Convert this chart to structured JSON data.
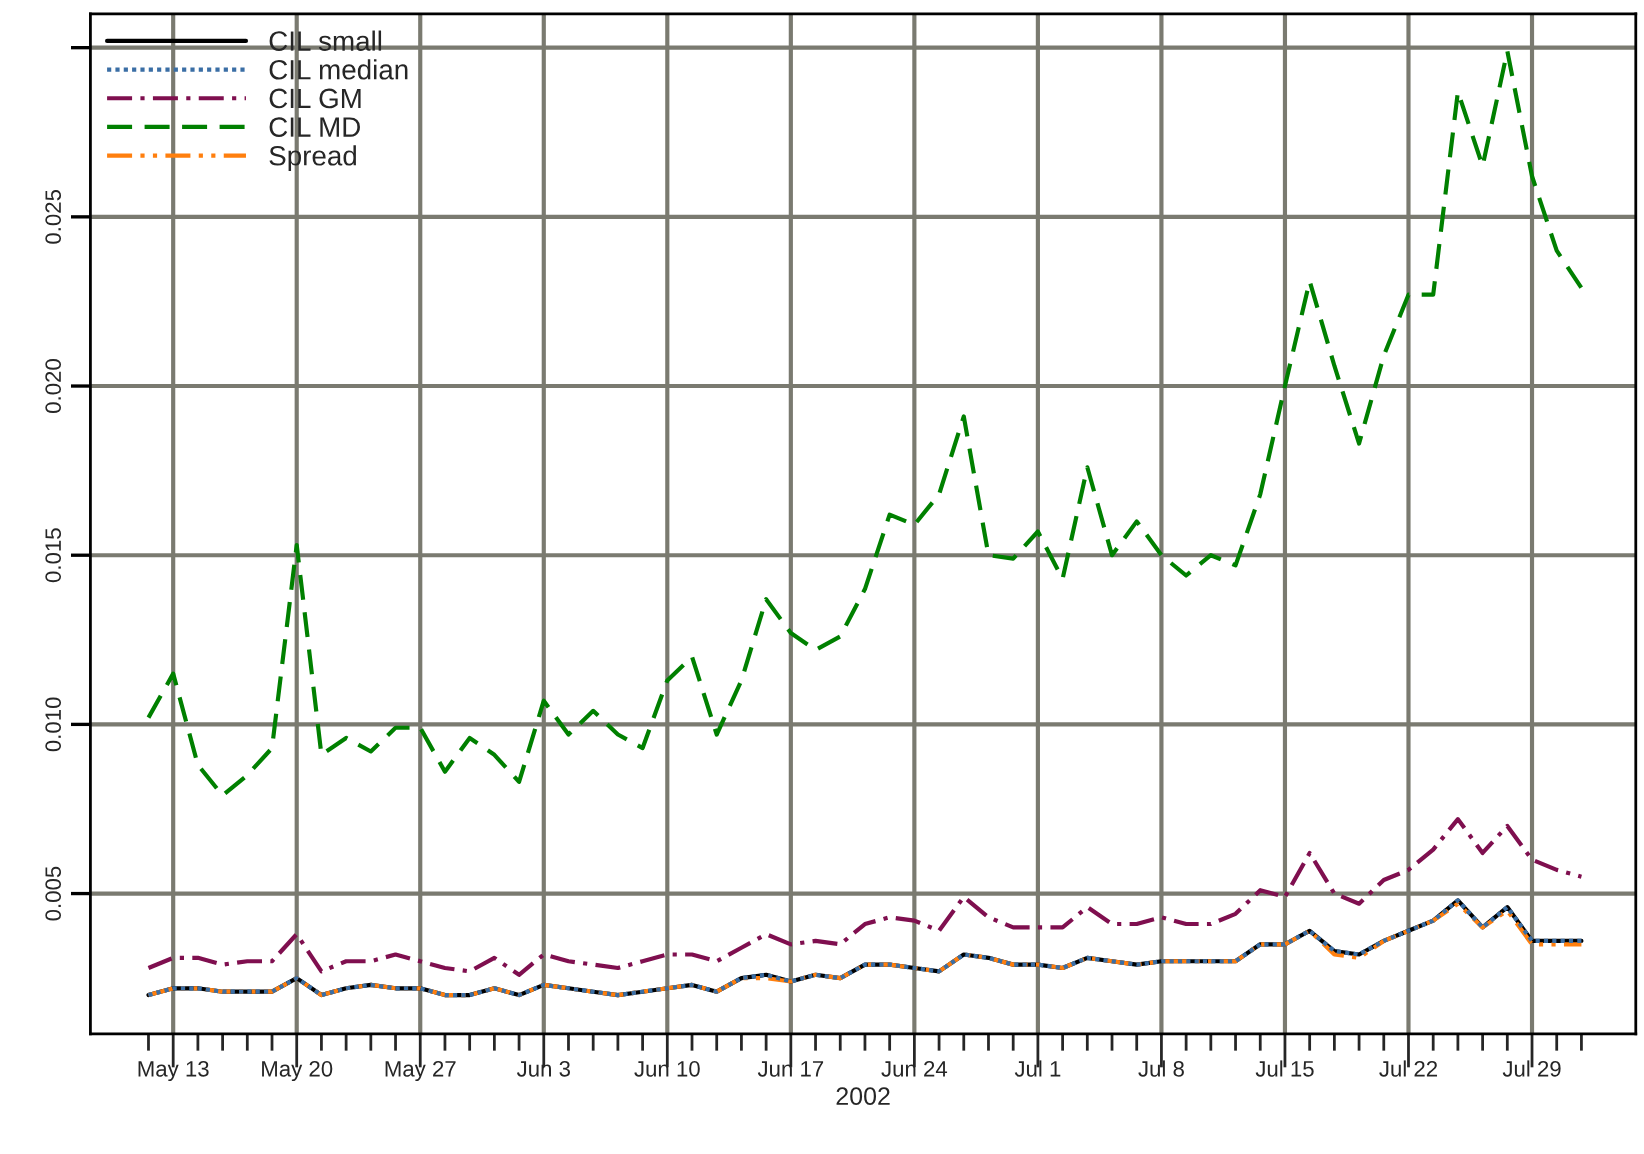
{
  "chart_data": {
    "type": "line",
    "xlabel": "2002",
    "categories": [
      null,
      "May 13",
      null,
      null,
      null,
      null,
      "May 20",
      null,
      null,
      null,
      null,
      "May 27",
      null,
      null,
      null,
      null,
      "Jun 3",
      null,
      null,
      null,
      null,
      "Jun 10",
      null,
      null,
      null,
      null,
      "Jun 17",
      null,
      null,
      null,
      null,
      "Jun 24",
      null,
      null,
      null,
      null,
      "Jul 1",
      null,
      null,
      null,
      null,
      "Jul 8",
      null,
      null,
      null,
      null,
      "Jul 15",
      null,
      null,
      null,
      null,
      "Jul 22",
      null,
      null,
      null,
      null,
      "Jul 29",
      null,
      null
    ],
    "series": [
      {
        "name": "CIL small",
        "color": "#000000",
        "line_style": "solid",
        "values": [
          0.002,
          0.0022,
          0.0022,
          0.0021,
          0.0021,
          0.0021,
          0.0025,
          0.002,
          0.0022,
          0.0023,
          0.0022,
          0.0022,
          0.002,
          0.002,
          0.0022,
          0.002,
          0.0023,
          0.0022,
          0.0021,
          0.002,
          0.0021,
          0.0022,
          0.0023,
          0.0021,
          0.0025,
          0.0026,
          0.0024,
          0.0026,
          0.0025,
          0.0029,
          0.0029,
          0.0028,
          0.0027,
          0.0032,
          0.0031,
          0.0029,
          0.0029,
          0.0028,
          0.0031,
          0.003,
          0.0029,
          0.003,
          0.003,
          0.003,
          0.003,
          0.0035,
          0.0035,
          0.0039,
          0.0033,
          0.0032,
          0.0036,
          0.0039,
          0.0042,
          0.0048,
          0.004,
          0.0046,
          0.0036,
          0.0036,
          0.0036
        ]
      },
      {
        "name": "CIL median",
        "color": "#3a6ea5",
        "line_style": "dotted",
        "values": [
          0.002,
          0.0022,
          0.0022,
          0.0021,
          0.0021,
          0.0021,
          0.0025,
          0.002,
          0.0022,
          0.0023,
          0.0022,
          0.0022,
          0.002,
          0.002,
          0.0022,
          0.002,
          0.0023,
          0.0022,
          0.0021,
          0.002,
          0.0021,
          0.0022,
          0.0023,
          0.0021,
          0.0025,
          0.0026,
          0.0024,
          0.0026,
          0.0025,
          0.0029,
          0.0029,
          0.0028,
          0.0027,
          0.0032,
          0.0031,
          0.0029,
          0.0029,
          0.0028,
          0.0031,
          0.003,
          0.0029,
          0.003,
          0.003,
          0.003,
          0.003,
          0.0035,
          0.0035,
          0.0039,
          0.0033,
          0.0032,
          0.0036,
          0.0039,
          0.0042,
          0.0048,
          0.004,
          0.0046,
          0.0036,
          0.0036,
          0.0036
        ]
      },
      {
        "name": "CIL GM",
        "color": "#7f0f4f",
        "line_style": "dashdot",
        "values": [
          0.0028,
          0.0031,
          0.0031,
          0.0029,
          0.003,
          0.003,
          0.0038,
          0.0027,
          0.003,
          0.003,
          0.0032,
          0.003,
          0.0028,
          0.0027,
          0.0031,
          0.0026,
          0.0032,
          0.003,
          0.0029,
          0.0028,
          0.003,
          0.0032,
          0.0032,
          0.003,
          0.0034,
          0.0038,
          0.0035,
          0.0036,
          0.0035,
          0.0041,
          0.0043,
          0.0042,
          0.0039,
          0.0049,
          0.0043,
          0.004,
          0.004,
          0.004,
          0.0046,
          0.0041,
          0.0041,
          0.0043,
          0.0041,
          0.0041,
          0.0044,
          0.0051,
          0.0049,
          0.0062,
          0.005,
          0.0047,
          0.0054,
          0.0057,
          0.0063,
          0.0072,
          0.0062,
          0.007,
          0.006,
          0.0057,
          0.0055
        ]
      },
      {
        "name": "CIL MD",
        "color": "#008000",
        "line_style": "dashed",
        "values": [
          0.0102,
          0.0115,
          0.0088,
          0.0079,
          0.0085,
          0.0093,
          0.0153,
          0.0091,
          0.0096,
          0.0092,
          0.0099,
          0.0099,
          0.0086,
          0.0096,
          0.0091,
          0.0083,
          0.0107,
          0.0097,
          0.0104,
          0.0097,
          0.0093,
          0.0113,
          0.012,
          0.0097,
          0.0113,
          0.0137,
          0.0127,
          0.0122,
          0.0126,
          0.014,
          0.0162,
          0.0159,
          0.0168,
          0.0191,
          0.015,
          0.0149,
          0.0157,
          0.0143,
          0.0176,
          0.015,
          0.016,
          0.015,
          0.0144,
          0.015,
          0.0147,
          0.0168,
          0.02,
          0.0231,
          0.0206,
          0.0183,
          0.0209,
          0.0227,
          0.0227,
          0.0287,
          0.0265,
          0.0299,
          0.0262,
          0.024,
          0.0229
        ]
      },
      {
        "name": "Spread",
        "color": "#ff7f0e",
        "line_style": "dashdotdot",
        "values": [
          0.002,
          0.0022,
          0.0022,
          0.0021,
          0.0021,
          0.0021,
          0.0025,
          0.002,
          0.0022,
          0.0023,
          0.0022,
          0.0022,
          0.002,
          0.002,
          0.0022,
          0.002,
          0.0023,
          0.0022,
          0.0021,
          0.002,
          0.0021,
          0.0022,
          0.0023,
          0.0021,
          0.0025,
          0.0025,
          0.0024,
          0.0026,
          0.0025,
          0.0029,
          0.0029,
          0.0028,
          0.0027,
          0.0032,
          0.0031,
          0.0029,
          0.0029,
          0.0028,
          0.0031,
          0.003,
          0.0029,
          0.003,
          0.003,
          0.003,
          0.003,
          0.0035,
          0.0035,
          0.0039,
          0.0032,
          0.0031,
          0.0036,
          0.0039,
          0.0042,
          0.0047,
          0.004,
          0.0045,
          0.0035,
          0.0035,
          0.0035
        ]
      }
    ],
    "ylim": [
      0.00085,
      0.031
    ],
    "yticks": [
      0.005,
      {
        "value": 0.01,
        "label": "0.010"
      },
      0.015,
      {
        "value": 0.02,
        "label": "0.020"
      },
      0.025,
      {
        "value": 0.03,
        "label": null
      }
    ],
    "grid": true,
    "legend": "top left"
  }
}
